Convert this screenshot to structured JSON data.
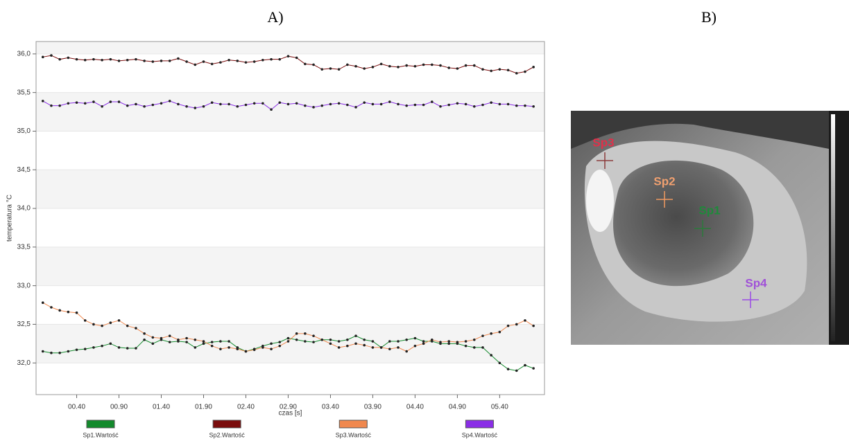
{
  "chart_data": {
    "type": "line",
    "title": "A)",
    "x": [
      0,
      0.1,
      0.2,
      0.3,
      0.4,
      0.5,
      0.6,
      0.7,
      0.8,
      0.9,
      1.0,
      1.1,
      1.2,
      1.3,
      1.4,
      1.5,
      1.6,
      1.7,
      1.8,
      1.9,
      2.0,
      2.1,
      2.2,
      2.3,
      2.4,
      2.5,
      2.6,
      2.7,
      2.8,
      2.9,
      3.0,
      3.1,
      3.2,
      3.3,
      3.4,
      3.5,
      3.6,
      3.7,
      3.8,
      3.9,
      4.0,
      4.1,
      4.2,
      4.3,
      4.4,
      4.5,
      4.6,
      4.7,
      4.8,
      4.9,
      5.0,
      5.1,
      5.2,
      5.3,
      5.4,
      5.5,
      5.6,
      5.7,
      5.8
    ],
    "series": [
      {
        "name": "Sp1.Wartość",
        "color": "#138a2c",
        "values": [
          32.15,
          32.13,
          32.13,
          32.15,
          32.17,
          32.18,
          32.2,
          32.22,
          32.25,
          32.2,
          32.19,
          32.19,
          32.3,
          32.25,
          32.3,
          32.27,
          32.28,
          32.27,
          32.2,
          32.25,
          32.27,
          32.28,
          32.28,
          32.2,
          32.15,
          32.18,
          32.22,
          32.25,
          32.27,
          32.32,
          32.3,
          32.28,
          32.27,
          32.3,
          32.3,
          32.28,
          32.3,
          32.35,
          32.3,
          32.28,
          32.2,
          32.28,
          32.28,
          32.3,
          32.32,
          32.28,
          32.28,
          32.25,
          32.25,
          32.25,
          32.22,
          32.2,
          32.2,
          32.1,
          32.0,
          31.92,
          31.9,
          31.97,
          31.93
        ]
      },
      {
        "name": "Sp2.Wartość",
        "color": "#7a0c0c",
        "values": [
          35.96,
          35.98,
          35.93,
          35.95,
          35.93,
          35.92,
          35.93,
          35.92,
          35.93,
          35.91,
          35.92,
          35.93,
          35.91,
          35.9,
          35.91,
          35.91,
          35.94,
          35.9,
          35.86,
          35.9,
          35.87,
          35.89,
          35.92,
          35.91,
          35.89,
          35.9,
          35.92,
          35.93,
          35.93,
          35.97,
          35.95,
          35.87,
          35.86,
          35.8,
          35.81,
          35.8,
          35.86,
          35.84,
          35.81,
          35.83,
          35.87,
          35.84,
          35.83,
          35.85,
          35.84,
          35.86,
          35.86,
          35.85,
          35.82,
          35.81,
          35.85,
          35.85,
          35.8,
          35.78,
          35.8,
          35.79,
          35.75,
          35.77,
          35.83
        ]
      },
      {
        "name": "Sp3.Wartość",
        "color": "#f0884e",
        "values": [
          32.78,
          32.72,
          32.68,
          32.66,
          32.65,
          32.55,
          32.5,
          32.48,
          32.52,
          32.55,
          32.48,
          32.45,
          32.38,
          32.33,
          32.32,
          32.35,
          32.3,
          32.32,
          32.3,
          32.28,
          32.22,
          32.18,
          32.2,
          32.18,
          32.15,
          32.17,
          32.2,
          32.18,
          32.22,
          32.28,
          32.38,
          32.38,
          32.35,
          32.3,
          32.25,
          32.2,
          32.22,
          32.25,
          32.23,
          32.2,
          32.2,
          32.18,
          32.2,
          32.15,
          32.22,
          32.25,
          32.3,
          32.27,
          32.28,
          32.27,
          32.28,
          32.3,
          32.35,
          32.38,
          32.4,
          32.48,
          32.5,
          32.55,
          32.48
        ]
      },
      {
        "name": "Sp4.Wartość",
        "color": "#8a2ee6",
        "values": [
          35.39,
          35.33,
          35.33,
          35.36,
          35.37,
          35.36,
          35.38,
          35.32,
          35.38,
          35.38,
          35.33,
          35.35,
          35.32,
          35.34,
          35.36,
          35.39,
          35.35,
          35.32,
          35.3,
          35.32,
          35.37,
          35.35,
          35.35,
          35.32,
          35.34,
          35.36,
          35.36,
          35.28,
          35.37,
          35.35,
          35.36,
          35.33,
          35.31,
          35.33,
          35.35,
          35.36,
          35.34,
          35.31,
          35.37,
          35.35,
          35.35,
          35.38,
          35.35,
          35.33,
          35.34,
          35.34,
          35.38,
          35.32,
          35.34,
          35.36,
          35.35,
          35.32,
          35.34,
          35.37,
          35.35,
          35.35,
          35.33,
          35.33,
          35.32
        ]
      }
    ],
    "xlim": [
      -0.08,
      5.93
    ],
    "ylim": [
      31.59,
      36.16
    ],
    "xticks": [
      {
        "value": 0.4,
        "label": "00.40"
      },
      {
        "value": 0.9,
        "label": "00.90"
      },
      {
        "value": 1.4,
        "label": "01.40"
      },
      {
        "value": 1.9,
        "label": "01.90"
      },
      {
        "value": 2.4,
        "label": "02.40"
      },
      {
        "value": 2.9,
        "label": "02.90"
      },
      {
        "value": 3.4,
        "label": "03.40"
      },
      {
        "value": 3.9,
        "label": "03.90"
      },
      {
        "value": 4.4,
        "label": "04.40"
      },
      {
        "value": 4.9,
        "label": "04.90"
      },
      {
        "value": 5.4,
        "label": "05.40"
      }
    ],
    "yticks": [
      {
        "value": 32.0,
        "label": "32,0"
      },
      {
        "value": 32.5,
        "label": "32,5"
      },
      {
        "value": 33.0,
        "label": "33,0"
      },
      {
        "value": 33.5,
        "label": "33,5"
      },
      {
        "value": 34.0,
        "label": "34,0"
      },
      {
        "value": 34.5,
        "label": "34,5"
      },
      {
        "value": 35.0,
        "label": "35,0"
      },
      {
        "value": 35.5,
        "label": "35,5"
      },
      {
        "value": 36.0,
        "label": "36,0"
      }
    ],
    "xlabel": "czas [s]",
    "ylabel": "temperatura °C",
    "grid": true,
    "legend": "bottom"
  },
  "image": {
    "title": "B)",
    "labels": [
      "Sp3",
      "Sp2",
      "Sp1",
      "Sp4"
    ]
  }
}
